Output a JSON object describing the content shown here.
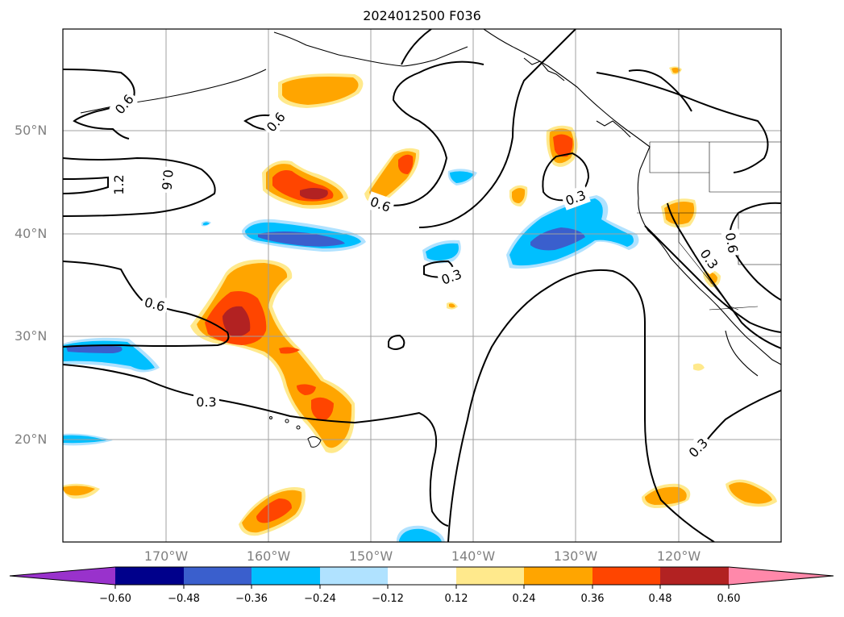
{
  "title": "2024012500 F036",
  "lat_labels": [
    "50°N",
    "40°N",
    "30°N",
    "20°N"
  ],
  "lon_labels": [
    "170°W",
    "160°W",
    "150°W",
    "140°W",
    "130°W",
    "120°W"
  ],
  "contour_labels": [
    "0.6",
    "0.6",
    "1.2",
    "0.6",
    "0.6",
    "0.3",
    "0.3",
    "0.6",
    "0.3",
    "0.6",
    "0.3",
    "0.3"
  ],
  "colorbar": {
    "ticks": [
      "−0.60",
      "−0.48",
      "−0.36",
      "−0.24",
      "−0.12",
      "0.12",
      "0.24",
      "0.36",
      "0.48",
      "0.60"
    ],
    "colors": [
      "#9932cc",
      "#00008b",
      "#3a5fcd",
      "#00bfff",
      "#b0e2ff",
      "#ffffff",
      "#ffe98c",
      "#ffa500",
      "#ff4500",
      "#b22222",
      "#ff88aa"
    ]
  },
  "fill_colors": {
    "light_blue": "#b0e2ff",
    "blue": "#00bfff",
    "royal_blue": "#3a5fcd",
    "light_yellow": "#ffe98c",
    "orange": "#ffa500",
    "red_orange": "#ff4500",
    "dark_red": "#b22222"
  }
}
